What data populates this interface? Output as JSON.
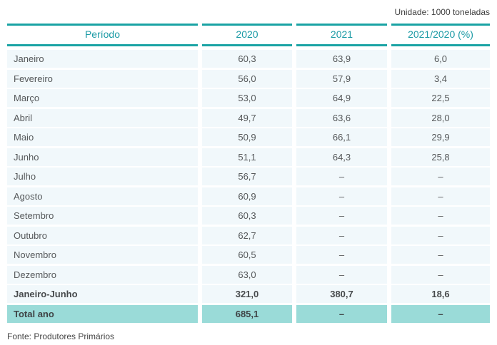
{
  "unit_label": "Unidade: 1000 toneladas",
  "source_label": "Fonte: Produtores Primários",
  "colors": {
    "accent_teal": "#1aa3a4",
    "header_text": "#1b9aa5",
    "row_background": "#f1f8fb",
    "total_row_background": "#9adbd8",
    "cell_text": "#55585a"
  },
  "chart_data": {
    "type": "table",
    "title": "",
    "unit": "1000 toneladas",
    "columns": [
      "Período",
      "2020",
      "2021",
      "2021/2020 (%)"
    ],
    "rows": [
      {
        "cells": [
          "Janeiro",
          "60,3",
          "63,9",
          "6,0"
        ],
        "style": "normal"
      },
      {
        "cells": [
          "Fevereiro",
          "56,0",
          "57,9",
          "3,4"
        ],
        "style": "normal"
      },
      {
        "cells": [
          "Março",
          "53,0",
          "64,9",
          "22,5"
        ],
        "style": "normal"
      },
      {
        "cells": [
          "Abril",
          "49,7",
          "63,6",
          "28,0"
        ],
        "style": "normal"
      },
      {
        "cells": [
          "Maio",
          "50,9",
          "66,1",
          "29,9"
        ],
        "style": "normal"
      },
      {
        "cells": [
          "Junho",
          "51,1",
          "64,3",
          "25,8"
        ],
        "style": "normal"
      },
      {
        "cells": [
          "Julho",
          "56,7",
          "–",
          "–"
        ],
        "style": "normal"
      },
      {
        "cells": [
          "Agosto",
          "60,9",
          "–",
          "–"
        ],
        "style": "normal"
      },
      {
        "cells": [
          "Setembro",
          "60,3",
          "–",
          "–"
        ],
        "style": "normal"
      },
      {
        "cells": [
          "Outubro",
          "62,7",
          "–",
          "–"
        ],
        "style": "normal"
      },
      {
        "cells": [
          "Novembro",
          "60,5",
          "–",
          "–"
        ],
        "style": "normal"
      },
      {
        "cells": [
          "Dezembro",
          "63,0",
          "–",
          "–"
        ],
        "style": "normal"
      },
      {
        "cells": [
          "Janeiro-Junho",
          "321,0",
          "380,7",
          "18,6"
        ],
        "style": "bold"
      },
      {
        "cells": [
          "Total ano",
          "685,1",
          "–",
          "–"
        ],
        "style": "total"
      }
    ],
    "source": "Fonte: Produtores Primários"
  }
}
